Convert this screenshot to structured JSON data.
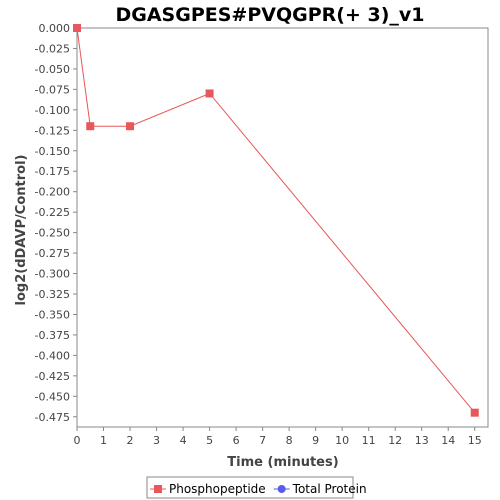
{
  "chart_data": {
    "type": "line",
    "title": "DGASGPES#PVQGPR(+ 3)_v1",
    "xlabel": "Time (minutes)",
    "ylabel": "log2(dDAVP/Control)",
    "xlim": [
      0,
      15.5
    ],
    "ylim": [
      -0.4875,
      0.0
    ],
    "x_ticks": [
      0,
      1,
      2,
      3,
      4,
      5,
      6,
      7,
      8,
      9,
      10,
      11,
      12,
      13,
      14,
      15
    ],
    "y_ticks": [
      0.0,
      -0.025,
      -0.05,
      -0.075,
      -0.1,
      -0.125,
      -0.15,
      -0.175,
      -0.2,
      -0.225,
      -0.25,
      -0.275,
      -0.3,
      -0.325,
      -0.35,
      -0.375,
      -0.4,
      -0.425,
      -0.45,
      -0.475
    ],
    "y_tick_labels": [
      "0.000",
      "-0.025",
      "-0.050",
      "-0.075",
      "-0.100",
      "-0.125",
      "-0.150",
      "-0.175",
      "-0.200",
      "-0.225",
      "-0.250",
      "-0.275",
      "-0.300",
      "-0.325",
      "-0.350",
      "-0.375",
      "-0.400",
      "-0.425",
      "-0.450",
      "-0.475"
    ],
    "grid": false,
    "legend_position": "bottom",
    "series": [
      {
        "name": "Phosphopeptide",
        "color": "#e8585a",
        "marker": "square",
        "points": [
          {
            "x": 0,
            "y": 0.0
          },
          {
            "x": 0.5,
            "y": -0.12
          },
          {
            "x": 2,
            "y": -0.12
          },
          {
            "x": 5,
            "y": -0.08
          },
          {
            "x": 15,
            "y": -0.47
          }
        ]
      },
      {
        "name": "Total Protein",
        "color": "#5a5ae8",
        "marker": "circle",
        "points": []
      }
    ]
  }
}
